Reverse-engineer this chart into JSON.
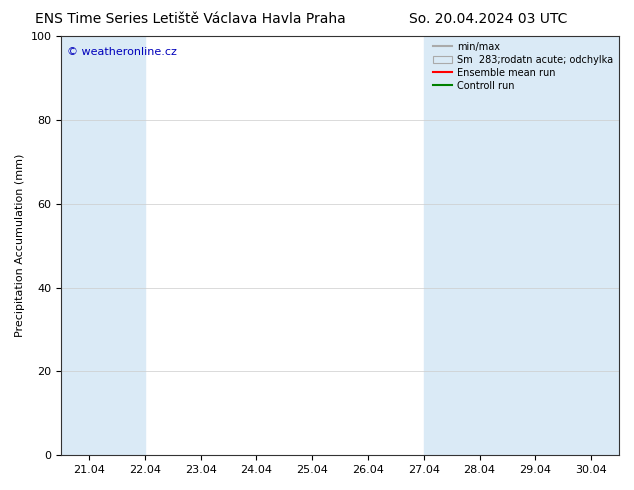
{
  "title_left": "ENS Time Series Letiště Václava Havla Praha",
  "title_right": "So. 20.04.2024 03 UTC",
  "ylabel": "Precipitation Accumulation (mm)",
  "ylim": [
    0,
    100
  ],
  "yticks": [
    0,
    20,
    40,
    60,
    80,
    100
  ],
  "xtick_labels": [
    "21.04",
    "22.04",
    "23.04",
    "24.04",
    "25.04",
    "26.04",
    "27.04",
    "28.04",
    "29.04",
    "30.04"
  ],
  "xlim": [
    20.5,
    30.5
  ],
  "xtick_positions": [
    21,
    22,
    23,
    24,
    25,
    26,
    27,
    28,
    29,
    30
  ],
  "shaded_bands": [
    {
      "start": 20.5,
      "end": 21.5,
      "color": "#daeaf6"
    },
    {
      "start": 21.5,
      "end": 22.0,
      "color": "#daeaf6"
    },
    {
      "start": 27.0,
      "end": 28.5,
      "color": "#daeaf6"
    },
    {
      "start": 28.5,
      "end": 29.5,
      "color": "#daeaf6"
    },
    {
      "start": 29.5,
      "end": 30.5,
      "color": "#daeaf6"
    }
  ],
  "background_color": "#ffffff",
  "plot_bg_color": "#ffffff",
  "legend_entries": [
    "min/max",
    "Sm  283;rodatn acute; odchylka",
    "Ensemble mean run",
    "Controll run"
  ],
  "watermark": "© weatheronline.cz",
  "watermark_color": "#0000bb",
  "title_fontsize": 10,
  "axis_fontsize": 8,
  "tick_fontsize": 8
}
